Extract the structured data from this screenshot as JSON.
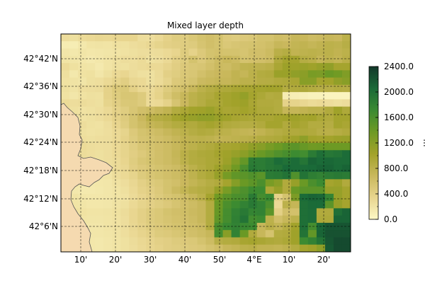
{
  "title": "Mixed layer depth",
  "x_tick_labels": [
    "10'",
    "20'",
    "30'",
    "40'",
    "50'",
    "4°E",
    "10'",
    "20'"
  ],
  "y_tick_labels": [
    "42°42'N",
    "42°36'N",
    "42°30'N",
    "42°24'N",
    "42°18'N",
    "42°12'N",
    "42°6'N"
  ],
  "colorbar": {
    "unit": "m",
    "min": 0,
    "max": 2400,
    "tick_labels": [
      "0.0",
      "400.0",
      "800.0",
      "1200.0",
      "1600.0",
      "2000.0",
      "2400.0"
    ],
    "colormap": [
      "#fdf8c6",
      "#e8d58e",
      "#c9b85c",
      "#a2a22a",
      "#6e9a24",
      "#3a8a32",
      "#1a6a38",
      "#13382a"
    ]
  },
  "map": {
    "grid_lines": "dashed",
    "land_color": "#f5dab0",
    "coastline_color": "#555555"
  },
  "chart_data": {
    "type": "heatmap",
    "title": "Mixed layer depth",
    "unit": "m",
    "value_range": [
      0,
      2400
    ],
    "rows": 30,
    "cols": 34,
    "row_order": "north_to_south",
    "values": [
      [
        260,
        240,
        280,
        300,
        320,
        310,
        330,
        340,
        340,
        260,
        250,
        300,
        380,
        440,
        440,
        500,
        560,
        600,
        560,
        470,
        450,
        480,
        500,
        560,
        560,
        620,
        600,
        700,
        690,
        640,
        660,
        700,
        680,
        800
      ],
      [
        120,
        110,
        160,
        200,
        210,
        200,
        230,
        230,
        260,
        280,
        310,
        360,
        400,
        420,
        440,
        460,
        540,
        600,
        560,
        500,
        530,
        550,
        560,
        580,
        620,
        700,
        680,
        740,
        760,
        720,
        760,
        800,
        780,
        840
      ],
      [
        180,
        160,
        190,
        170,
        180,
        190,
        200,
        220,
        240,
        260,
        260,
        270,
        300,
        340,
        450,
        380,
        480,
        560,
        580,
        560,
        560,
        540,
        600,
        600,
        650,
        820,
        860,
        760,
        780,
        800,
        780,
        800,
        760,
        800
      ],
      [
        200,
        190,
        170,
        150,
        170,
        200,
        230,
        260,
        250,
        280,
        230,
        250,
        300,
        400,
        450,
        560,
        480,
        560,
        640,
        690,
        650,
        560,
        580,
        600,
        640,
        900,
        1000,
        1000,
        860,
        820,
        720,
        780,
        740,
        820
      ],
      [
        280,
        230,
        200,
        190,
        150,
        200,
        240,
        230,
        260,
        280,
        300,
        300,
        350,
        420,
        480,
        510,
        530,
        590,
        660,
        640,
        700,
        770,
        780,
        790,
        820,
        960,
        1060,
        1050,
        1080,
        1050,
        1100,
        1140,
        1000,
        1000
      ],
      [
        240,
        160,
        220,
        230,
        180,
        240,
        300,
        330,
        270,
        240,
        230,
        290,
        400,
        440,
        500,
        520,
        590,
        650,
        680,
        690,
        760,
        720,
        800,
        880,
        900,
        1080,
        1080,
        1150,
        1180,
        1300,
        1280,
        1400,
        1350,
        1250
      ],
      [
        220,
        210,
        190,
        240,
        250,
        300,
        360,
        420,
        320,
        300,
        240,
        280,
        360,
        480,
        520,
        560,
        660,
        690,
        720,
        710,
        760,
        800,
        800,
        850,
        860,
        900,
        920,
        960,
        1200,
        1200,
        1000,
        1020,
        1140,
        1200
      ],
      [
        240,
        210,
        250,
        260,
        270,
        380,
        470,
        500,
        390,
        310,
        280,
        350,
        450,
        540,
        600,
        700,
        800,
        860,
        900,
        920,
        960,
        980,
        980,
        1000,
        1020,
        1010,
        880,
        900,
        920,
        880,
        840,
        840,
        880,
        860
      ],
      [
        220,
        180,
        220,
        240,
        230,
        380,
        450,
        520,
        520,
        460,
        300,
        370,
        500,
        620,
        700,
        800,
        860,
        900,
        980,
        1000,
        1050,
        1120,
        1000,
        940,
        880,
        900,
        120,
        100,
        80,
        60,
        60,
        40,
        40,
        40
      ],
      [
        280,
        260,
        270,
        250,
        240,
        360,
        420,
        500,
        510,
        460,
        280,
        300,
        380,
        540,
        680,
        800,
        860,
        940,
        940,
        1000,
        1030,
        1060,
        960,
        900,
        900,
        880,
        380,
        360,
        320,
        280,
        300,
        260,
        240,
        260
      ],
      [
        300,
        240,
        220,
        230,
        250,
        300,
        380,
        440,
        520,
        600,
        640,
        700,
        760,
        880,
        950,
        1020,
        1040,
        1080,
        1000,
        960,
        980,
        1020,
        980,
        920,
        920,
        880,
        720,
        720,
        760,
        800,
        800,
        900,
        1040,
        920
      ],
      [
        260,
        220,
        220,
        240,
        260,
        300,
        380,
        460,
        560,
        680,
        820,
        860,
        900,
        1000,
        1060,
        1100,
        1140,
        1140,
        1080,
        1040,
        980,
        960,
        940,
        960,
        960,
        1000,
        1020,
        1040,
        1000,
        1020,
        940,
        900,
        1000,
        1000
      ],
      [
        300,
        280,
        260,
        230,
        220,
        260,
        340,
        440,
        560,
        640,
        720,
        760,
        820,
        880,
        900,
        900,
        960,
        1000,
        960,
        900,
        880,
        860,
        860,
        900,
        1000,
        1000,
        900,
        1000,
        960,
        880,
        880,
        860,
        1000,
        960
      ],
      [
        300,
        280,
        240,
        220,
        230,
        250,
        300,
        360,
        480,
        560,
        600,
        640,
        700,
        760,
        800,
        860,
        900,
        880,
        820,
        800,
        760,
        740,
        720,
        760,
        820,
        860,
        900,
        900,
        920,
        900,
        840,
        820,
        860,
        900
      ],
      [
        300,
        280,
        250,
        240,
        250,
        260,
        300,
        380,
        460,
        540,
        560,
        600,
        640,
        700,
        760,
        780,
        800,
        780,
        740,
        760,
        780,
        800,
        820,
        880,
        900,
        920,
        980,
        1050,
        1160,
        1020,
        1000,
        1020,
        1060,
        1080
      ],
      [
        300,
        290,
        280,
        260,
        250,
        260,
        300,
        360,
        440,
        520,
        560,
        600,
        640,
        700,
        760,
        800,
        860,
        900,
        960,
        980,
        1000,
        1060,
        1140,
        1200,
        1300,
        1380,
        1460,
        1500,
        1420,
        1360,
        1380,
        1380,
        1380,
        1380
      ],
      [
        280,
        270,
        270,
        250,
        240,
        260,
        300,
        360,
        420,
        480,
        540,
        600,
        640,
        720,
        820,
        880,
        920,
        940,
        1000,
        1040,
        1100,
        1180,
        1300,
        1400,
        1480,
        1560,
        1620,
        1700,
        1660,
        1880,
        2000,
        1920,
        1950,
        2040
      ],
      [
        280,
        260,
        240,
        240,
        240,
        260,
        280,
        340,
        440,
        520,
        560,
        600,
        640,
        700,
        800,
        880,
        900,
        940,
        960,
        1060,
        1240,
        1440,
        1860,
        1860,
        1920,
        2040,
        1980,
        2040,
        1940,
        2100,
        2050,
        2070,
        2040,
        2040
      ],
      [
        260,
        240,
        220,
        200,
        200,
        240,
        280,
        320,
        420,
        480,
        520,
        560,
        600,
        640,
        720,
        800,
        880,
        940,
        1050,
        1150,
        1360,
        1600,
        1900,
        1860,
        1920,
        1960,
        2060,
        2040,
        2040,
        2060,
        2100,
        2100,
        2050,
        2100
      ],
      [
        240,
        230,
        220,
        200,
        190,
        200,
        260,
        300,
        360,
        460,
        520,
        560,
        600,
        640,
        700,
        780,
        880,
        940,
        1100,
        1320,
        1460,
        1500,
        1560,
        1500,
        1880,
        1900,
        1960,
        1560,
        1960,
        1840,
        1800,
        1860,
        1900,
        1880
      ],
      [
        220,
        200,
        180,
        160,
        170,
        180,
        220,
        260,
        320,
        400,
        460,
        500,
        560,
        600,
        680,
        740,
        800,
        860,
        900,
        1000,
        1220,
        1400,
        1480,
        1600,
        1300,
        1200,
        900,
        1100,
        1400,
        1600,
        1700,
        1000,
        1050,
        900
      ],
      [
        160,
        160,
        150,
        150,
        160,
        180,
        200,
        240,
        300,
        380,
        420,
        480,
        560,
        660,
        740,
        820,
        860,
        900,
        1100,
        1300,
        1500,
        1580,
        1700,
        1700,
        940,
        1100,
        900,
        1400,
        1500,
        1500,
        1500,
        1100,
        1100,
        1000
      ],
      [
        220,
        200,
        180,
        170,
        170,
        180,
        200,
        220,
        280,
        340,
        400,
        460,
        520,
        560,
        620,
        700,
        800,
        1000,
        1350,
        1500,
        1600,
        1620,
        1880,
        1640,
        1740,
        380,
        560,
        1280,
        2050,
        2100,
        2080,
        1780,
        1100,
        1000
      ],
      [
        220,
        200,
        190,
        170,
        170,
        180,
        210,
        240,
        300,
        360,
        400,
        440,
        480,
        540,
        600,
        640,
        700,
        880,
        1400,
        1600,
        1700,
        1800,
        1900,
        1800,
        1600,
        300,
        800,
        720,
        2000,
        2050,
        2050,
        1500,
        1100,
        1000
      ],
      [
        260,
        240,
        220,
        200,
        200,
        210,
        230,
        270,
        330,
        400,
        460,
        500,
        560,
        600,
        620,
        660,
        700,
        880,
        1420,
        1640,
        1800,
        1900,
        1780,
        1800,
        1500,
        400,
        600,
        580,
        2000,
        2040,
        900,
        900,
        2000,
        2100
      ],
      [
        240,
        220,
        200,
        190,
        190,
        200,
        220,
        260,
        330,
        400,
        460,
        500,
        540,
        580,
        600,
        640,
        700,
        880,
        1460,
        1640,
        1820,
        1960,
        1660,
        1700,
        800,
        600,
        700,
        800,
        2000,
        2040,
        920,
        920,
        2100,
        2100
      ],
      [
        230,
        220,
        200,
        180,
        180,
        200,
        220,
        260,
        320,
        380,
        440,
        480,
        520,
        560,
        580,
        620,
        660,
        880,
        1600,
        1720,
        1800,
        1740,
        1700,
        700,
        820,
        740,
        850,
        1020,
        2000,
        1650,
        2080,
        2200,
        2200,
        2200
      ],
      [
        210,
        200,
        190,
        180,
        180,
        190,
        210,
        250,
        300,
        350,
        400,
        460,
        480,
        520,
        560,
        600,
        640,
        700,
        1650,
        1200,
        1800,
        1400,
        900,
        700,
        560,
        880,
        900,
        1050,
        1960,
        1450,
        2100,
        2220,
        2220,
        2220
      ],
      [
        200,
        190,
        180,
        170,
        160,
        180,
        200,
        230,
        270,
        310,
        350,
        400,
        420,
        460,
        480,
        500,
        560,
        640,
        840,
        880,
        900,
        980,
        1000,
        960,
        920,
        900,
        940,
        1040,
        1700,
        1800,
        1960,
        2200,
        2280,
        2280
      ],
      [
        200,
        190,
        180,
        170,
        160,
        180,
        200,
        230,
        260,
        300,
        340,
        380,
        420,
        440,
        460,
        480,
        500,
        560,
        620,
        700,
        740,
        800,
        820,
        760,
        760,
        740,
        780,
        880,
        1000,
        1040,
        1160,
        2180,
        2280,
        2280
      ]
    ]
  }
}
